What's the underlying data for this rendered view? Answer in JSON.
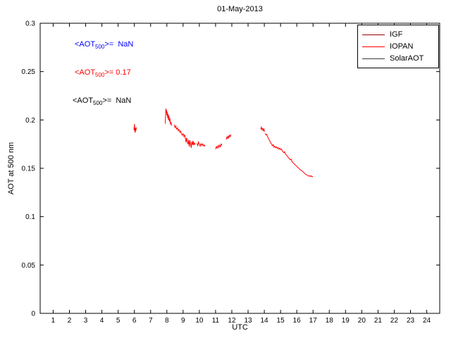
{
  "chart_data": {
    "type": "line",
    "title": "01-May-2013",
    "xlabel": "UTC",
    "ylabel": "AOT at 500 nm",
    "xlim": [
      0.2,
      24.8
    ],
    "ylim": [
      0,
      0.3
    ],
    "grid": false,
    "x_ticks": [
      1,
      2,
      3,
      4,
      5,
      6,
      7,
      8,
      9,
      10,
      11,
      12,
      13,
      14,
      15,
      16,
      17,
      18,
      19,
      20,
      21,
      22,
      23,
      24
    ],
    "y_ticks": [
      0,
      0.05,
      0.1,
      0.15,
      0.2,
      0.25,
      0.3
    ],
    "y_tick_labels": [
      "0",
      "0.05",
      "0.1",
      "0.15",
      "0.2",
      "0.25",
      "0.3"
    ],
    "legend": {
      "position": "top-right",
      "entries": [
        {
          "label": "IGF",
          "color": "#990000"
        },
        {
          "label": "IOPAN",
          "color": "#ff0000"
        },
        {
          "label": "SolarAOT",
          "color": "#3a3a3a"
        }
      ]
    },
    "annotations": [
      {
        "pre": "<AOT",
        "sub": "500",
        "post": ">=  NaN",
        "color": "#0000ff"
      },
      {
        "pre": "<AOT",
        "sub": "500",
        "post": ">= 0.17",
        "color": "#ff0000"
      },
      {
        "pre": "<AOT",
        "sub": "500",
        "post": ">=  NaN",
        "color": "#000000"
      }
    ],
    "series": [
      {
        "name": "IGF",
        "color": "#990000",
        "segments": []
      },
      {
        "name": "IOPAN",
        "color": "#ff0000",
        "segments": [
          [
            [
              5.97,
              0.1895
            ],
            [
              5.99,
              0.1932
            ],
            [
              6.01,
              0.1958
            ],
            [
              6.02,
              0.1905
            ],
            [
              6.04,
              0.1868
            ],
            [
              6.06,
              0.1915
            ],
            [
              6.08,
              0.1882
            ],
            [
              6.1,
              0.1925
            ],
            [
              6.12,
              0.1898
            ]
          ],
          [
            [
              7.9,
              0.1962
            ],
            [
              7.92,
              0.2035
            ],
            [
              7.94,
              0.2118
            ],
            [
              7.96,
              0.2071
            ],
            [
              7.98,
              0.2102
            ],
            [
              8.0,
              0.2048
            ],
            [
              8.02,
              0.2085
            ],
            [
              8.05,
              0.2021
            ],
            [
              8.08,
              0.2063
            ],
            [
              8.1,
              0.1998
            ],
            [
              8.13,
              0.2042
            ],
            [
              8.16,
              0.1985
            ],
            [
              8.19,
              0.2015
            ],
            [
              8.22,
              0.1958
            ],
            [
              8.26,
              0.1972
            ],
            [
              8.3,
              0.1941
            ]
          ],
          [
            [
              8.45,
              0.1952
            ],
            [
              8.5,
              0.1921
            ],
            [
              8.55,
              0.1938
            ],
            [
              8.6,
              0.1905
            ],
            [
              8.65,
              0.1918
            ],
            [
              8.7,
              0.1888
            ],
            [
              8.75,
              0.1902
            ],
            [
              8.8,
              0.1872
            ],
            [
              8.85,
              0.1885
            ],
            [
              8.9,
              0.1855
            ],
            [
              8.95,
              0.1842
            ],
            [
              9.0,
              0.1858
            ],
            [
              9.05,
              0.1828
            ],
            [
              9.1,
              0.1845
            ],
            [
              9.15,
              0.1802
            ],
            [
              9.18,
              0.1768
            ],
            [
              9.22,
              0.1815
            ],
            [
              9.26,
              0.1782
            ],
            [
              9.3,
              0.1748
            ],
            [
              9.34,
              0.1795
            ],
            [
              9.38,
              0.1722
            ],
            [
              9.42,
              0.1788
            ],
            [
              9.46,
              0.1752
            ],
            [
              9.5,
              0.1712
            ],
            [
              9.54,
              0.1775
            ],
            [
              9.58,
              0.1742
            ],
            [
              9.62,
              0.1785
            ],
            [
              9.66,
              0.1738
            ],
            [
              9.7,
              0.1762
            ],
            [
              9.75,
              0.1745
            ]
          ],
          [
            [
              9.85,
              0.1758
            ],
            [
              9.9,
              0.1735
            ],
            [
              9.95,
              0.1772
            ],
            [
              10.0,
              0.1748
            ],
            [
              10.05,
              0.1728
            ],
            [
              10.1,
              0.1755
            ],
            [
              10.15,
              0.1738
            ],
            [
              10.2,
              0.1752
            ],
            [
              10.25,
              0.1731
            ],
            [
              10.3,
              0.1742
            ],
            [
              10.35,
              0.1725
            ]
          ],
          [
            [
              11.0,
              0.1698
            ],
            [
              11.05,
              0.1725
            ],
            [
              11.1,
              0.1708
            ],
            [
              11.15,
              0.1735
            ],
            [
              11.2,
              0.1715
            ],
            [
              11.25,
              0.1742
            ],
            [
              11.3,
              0.1722
            ],
            [
              11.35,
              0.1752
            ],
            [
              11.4,
              0.1738
            ]
          ],
          [
            [
              11.65,
              0.1798
            ],
            [
              11.7,
              0.1825
            ],
            [
              11.74,
              0.1808
            ],
            [
              11.78,
              0.1832
            ],
            [
              11.82,
              0.1815
            ],
            [
              11.86,
              0.1842
            ],
            [
              11.9,
              0.1828
            ],
            [
              11.95,
              0.1848
            ]
          ],
          [
            [
              13.78,
              0.1902
            ],
            [
              13.82,
              0.1925
            ],
            [
              13.86,
              0.1898
            ],
            [
              13.9,
              0.1912
            ],
            [
              13.94,
              0.1888
            ],
            [
              13.98,
              0.1905
            ],
            [
              14.02,
              0.1878
            ]
          ],
          [
            [
              14.05,
              0.1862
            ],
            [
              14.1,
              0.1845
            ],
            [
              14.15,
              0.1852
            ],
            [
              14.2,
              0.1828
            ],
            [
              14.25,
              0.1812
            ],
            [
              14.3,
              0.1792
            ],
            [
              14.35,
              0.1778
            ],
            [
              14.4,
              0.1762
            ],
            [
              14.45,
              0.1748
            ],
            [
              14.5,
              0.1732
            ],
            [
              14.55,
              0.1745
            ],
            [
              14.6,
              0.1718
            ],
            [
              14.65,
              0.1728
            ],
            [
              14.7,
              0.1712
            ],
            [
              14.75,
              0.1722
            ],
            [
              14.8,
              0.1705
            ],
            [
              14.85,
              0.1715
            ],
            [
              14.9,
              0.1698
            ],
            [
              14.95,
              0.1708
            ],
            [
              15.0,
              0.1692
            ],
            [
              15.05,
              0.17
            ],
            [
              15.1,
              0.1685
            ],
            [
              15.15,
              0.1672
            ],
            [
              15.2,
              0.1662
            ],
            [
              15.25,
              0.1671
            ],
            [
              15.3,
              0.1648
            ],
            [
              15.35,
              0.1638
            ],
            [
              15.4,
              0.1628
            ],
            [
              15.45,
              0.1618
            ],
            [
              15.5,
              0.1608
            ],
            [
              15.55,
              0.1598
            ],
            [
              15.6,
              0.1588
            ],
            [
              15.65,
              0.1595
            ],
            [
              15.7,
              0.1572
            ],
            [
              15.75,
              0.1562
            ],
            [
              15.8,
              0.1552
            ],
            [
              15.85,
              0.1545
            ],
            [
              15.9,
              0.1535
            ],
            [
              15.95,
              0.1528
            ],
            [
              16.0,
              0.1518
            ],
            [
              16.05,
              0.1512
            ],
            [
              16.1,
              0.1502
            ],
            [
              16.15,
              0.1495
            ],
            [
              16.2,
              0.1488
            ],
            [
              16.25,
              0.1482
            ],
            [
              16.3,
              0.1475
            ],
            [
              16.35,
              0.1468
            ],
            [
              16.4,
              0.1462
            ],
            [
              16.45,
              0.1452
            ],
            [
              16.5,
              0.1445
            ],
            [
              16.55,
              0.1438
            ],
            [
              16.6,
              0.1432
            ],
            [
              16.65,
              0.1428
            ],
            [
              16.7,
              0.1422
            ],
            [
              16.75,
              0.1418
            ],
            [
              16.8,
              0.1425
            ],
            [
              16.85,
              0.1415
            ],
            [
              16.9,
              0.1422
            ],
            [
              16.95,
              0.1412
            ],
            [
              16.98,
              0.1418
            ]
          ]
        ]
      },
      {
        "name": "SolarAOT",
        "color": "#3a3a3a",
        "segments": []
      }
    ]
  }
}
